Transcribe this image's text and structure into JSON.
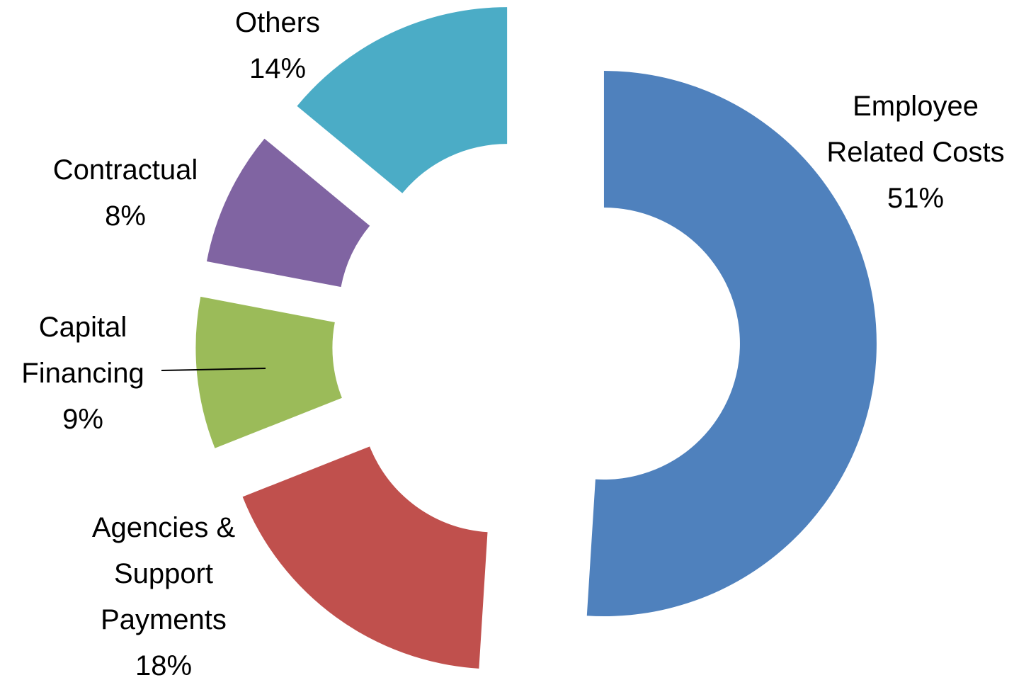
{
  "chart_data": {
    "type": "donut",
    "categories": [
      "Employee Related Costs",
      "Agencies & Support Payments",
      "Capital Financing",
      "Contractual",
      "Others"
    ],
    "values": [
      51,
      18,
      9,
      8,
      14
    ],
    "value_labels": [
      "51%",
      "18%",
      "9%",
      "8%",
      "14%"
    ],
    "colors": [
      "#4f81bd",
      "#c0504d",
      "#9bbb59",
      "#8064a2",
      "#4bacc6"
    ],
    "exploded": true
  }
}
